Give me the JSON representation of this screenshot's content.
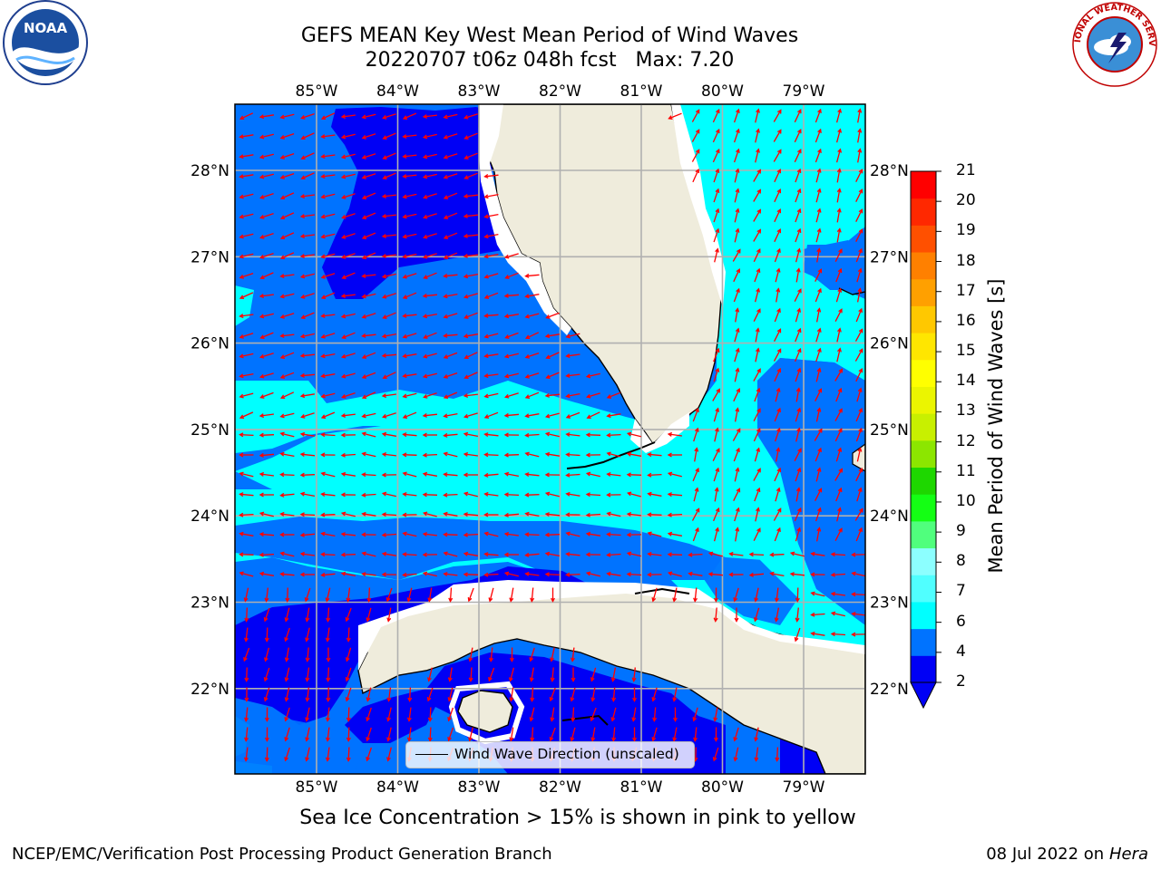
{
  "header": {
    "title_line1": "GEFS MEAN Key West Mean Period of Wind Waves",
    "title_line2": "20220707 t06z 048h fcst   Max: 7.20"
  },
  "logos": {
    "left": {
      "name": "noaa-logo",
      "text": "NOAA"
    },
    "right": {
      "name": "national-weather-service-logo",
      "text": "NATIONAL WEATHER SERVICE"
    }
  },
  "map": {
    "projection": "lat-lon",
    "lon_ticks": [
      "85°W",
      "84°W",
      "83°W",
      "82°W",
      "81°W",
      "80°W",
      "79°W"
    ],
    "lat_ticks": [
      "28°N",
      "27°N",
      "26°N",
      "25°N",
      "24°N",
      "23°N",
      "22°N"
    ],
    "grid": true,
    "land_color": "#efecdc",
    "vector_color": "#ff0000",
    "legend": {
      "label": "Wind Wave Direction (unscaled)",
      "placement": "bottom-center"
    }
  },
  "colorbar": {
    "label": "Mean Period of Wind Waves [s]",
    "ticks": [
      "21",
      "20",
      "19",
      "18",
      "17",
      "16",
      "15",
      "14",
      "13",
      "12",
      "11",
      "10",
      "9",
      "8",
      "7",
      "6",
      "4",
      "2"
    ],
    "colors": [
      "#0000f5",
      "#0073ff",
      "#00ffff",
      "#50ffff",
      "#8cffff",
      "#50ff7d",
      "#14ff14",
      "#1ed700",
      "#8ce600",
      "#c8f000",
      "#ebf500",
      "#ffff00",
      "#ffe600",
      "#ffc800",
      "#ffa000",
      "#ff8000",
      "#ff5000",
      "#ff2800",
      "#ff0000"
    ],
    "extend": "min"
  },
  "caption": "Sea Ice Concentration > 15% is shown in pink to yellow",
  "footer": {
    "left": "NCEP/EMC/Verification Post Processing Product Generation Branch",
    "right_date": "08 Jul 2022 on ",
    "right_host": "Hera"
  }
}
